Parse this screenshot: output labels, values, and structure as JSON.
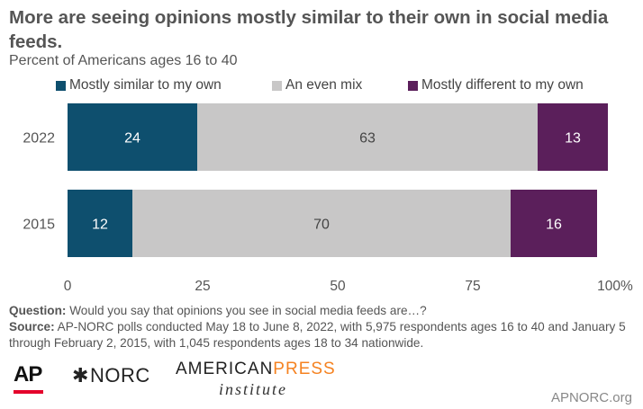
{
  "title": "More are seeing opinions mostly similar to their own in social media feeds.",
  "subtitle": "Percent of Americans ages 16 to 40",
  "chart_data": {
    "type": "bar",
    "orientation": "horizontal",
    "stacked": true,
    "categories": [
      "2022",
      "2015"
    ],
    "series": [
      {
        "name": "Mostly similar to my own",
        "values": [
          24,
          12
        ],
        "color": "#0e4f6e"
      },
      {
        "name": "An even mix",
        "values": [
          63,
          70
        ],
        "color": "#c8c7c7"
      },
      {
        "name": "Mostly different to my own",
        "values": [
          13,
          16
        ],
        "color": "#5b1f5b"
      }
    ],
    "xlim": [
      0,
      100
    ],
    "x_ticks": [
      "0",
      "25",
      "50",
      "75",
      "100%"
    ],
    "legend_position": "top",
    "grid": false
  },
  "notes": {
    "question_label": "Question:",
    "question_text": "Would you say that opinions you see in social media feeds are…?",
    "source_label": "Source:",
    "source_text": "AP-NORC polls conducted May 18 to June 8, 2022, with 5,975 respondents ages 16 to 40 and January 5 through February 2, 2015, with 1,045 respondents ages 18 to 34 nationwide."
  },
  "logos": {
    "ap": "AP",
    "norc": "NORC",
    "api_american": "AMERICAN",
    "api_press": "PRESS",
    "api_institute": "institute"
  },
  "site": "APNORC.org",
  "colors": {
    "text": "#555555",
    "accent_red": "#e4002b",
    "accent_orange": "#f58220"
  }
}
